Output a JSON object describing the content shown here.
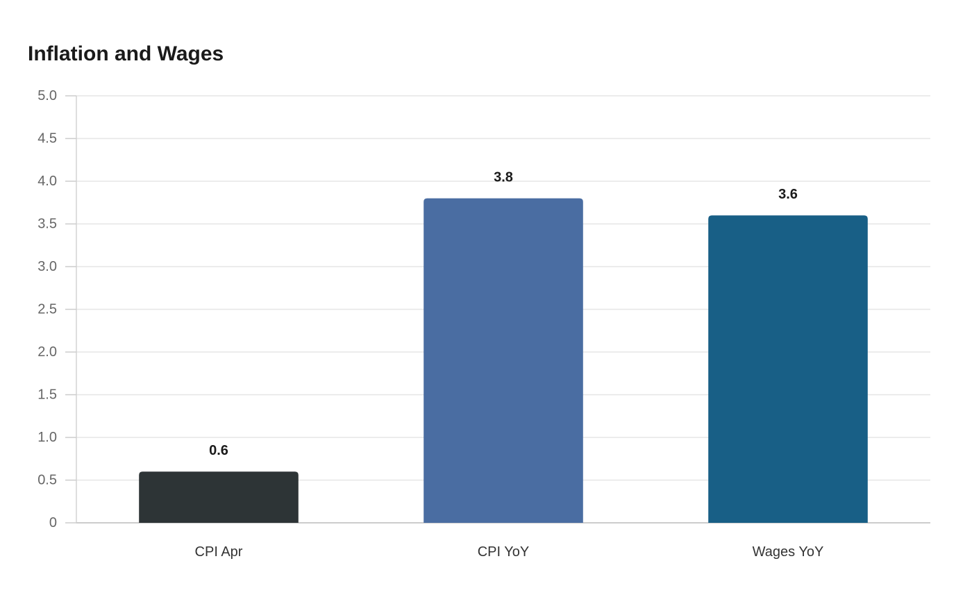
{
  "chart_data": {
    "type": "bar",
    "title": "Inflation and Wages",
    "categories": [
      "CPI Apr",
      "CPI YoY",
      "Wages YoY"
    ],
    "values": [
      0.6,
      3.8,
      3.6
    ],
    "data_labels": [
      "0.6",
      "3.8",
      "3.6"
    ],
    "colors": [
      "#2d3436",
      "#4a6da2",
      "#185f86"
    ],
    "ylim": [
      0,
      5
    ],
    "yticks": [
      0,
      0.5,
      1.0,
      1.5,
      2.0,
      2.5,
      3.0,
      3.5,
      4.0,
      4.5,
      5.0
    ],
    "ytick_labels": [
      "0",
      "0.5",
      "1.0",
      "1.5",
      "2.0",
      "2.5",
      "3.0",
      "3.5",
      "4.0",
      "4.5",
      "5.0"
    ],
    "xlabel": "",
    "ylabel": "",
    "grid": true,
    "legend": "none"
  }
}
